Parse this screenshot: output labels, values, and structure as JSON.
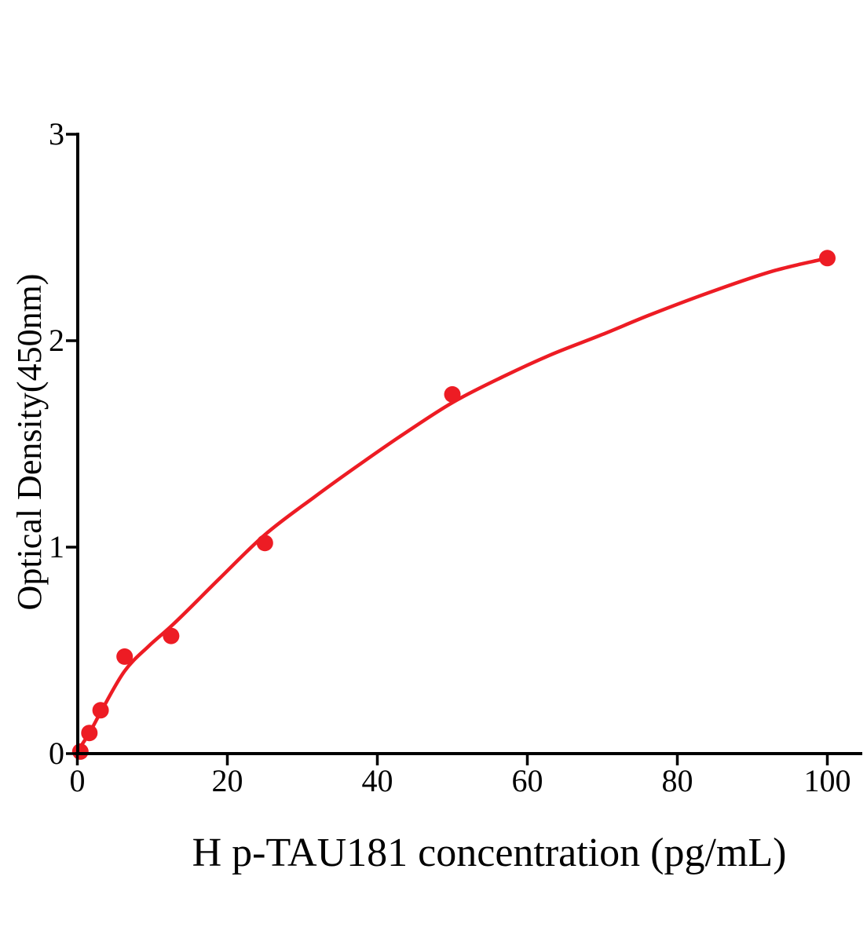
{
  "figure": {
    "background": "#ffffff"
  },
  "chart_data": {
    "type": "scatter",
    "title": "",
    "xlabel": "H p-TAU181 concentration (pg/mL)",
    "ylabel": "Optical Density(450nm)",
    "x_ticks": [
      0,
      20,
      40,
      60,
      80,
      100
    ],
    "y_ticks": [
      0,
      1,
      2,
      3
    ],
    "xlim": [
      0,
      104.5
    ],
    "ylim": [
      0,
      3
    ],
    "grid": false,
    "legend": "none",
    "accent_color": "#ED1C24",
    "axis_color": "#000000",
    "series": [
      {
        "name": "standard-points",
        "type": "scatter",
        "color": "#ED1C24",
        "marker_radius": 10.5,
        "x": [
          0.4,
          1.6,
          3.1,
          6.3,
          12.5,
          25,
          50,
          100
        ],
        "y": [
          0.01,
          0.1,
          0.21,
          0.47,
          0.57,
          1.02,
          1.74,
          2.4
        ]
      },
      {
        "name": "fit-curve",
        "type": "line",
        "color": "#ED1C24",
        "stroke_width": 4.5,
        "x": [
          0,
          1.6,
          3.1,
          6.3,
          9.5,
          12.6,
          19,
          25,
          31.5,
          38,
          44,
          50,
          57,
          63,
          70,
          76,
          84,
          93,
          100
        ],
        "y": [
          0.01,
          0.1,
          0.2,
          0.4,
          0.52,
          0.62,
          0.85,
          1.06,
          1.24,
          1.41,
          1.56,
          1.7,
          1.83,
          1.93,
          2.03,
          2.12,
          2.23,
          2.34,
          2.4
        ]
      }
    ]
  }
}
